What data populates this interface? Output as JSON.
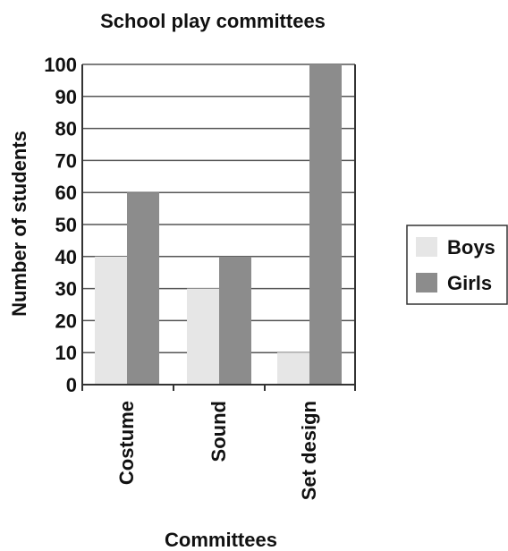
{
  "chart_data": {
    "type": "bar",
    "title": "School play committees",
    "xlabel": "Committees",
    "ylabel": "Number of students",
    "categories": [
      "Costume",
      "Sound",
      "Set design"
    ],
    "series": [
      {
        "name": "Boys",
        "values": [
          40,
          30,
          10
        ]
      },
      {
        "name": "Girls",
        "values": [
          60,
          40,
          100
        ]
      }
    ],
    "ylim": [
      0,
      100
    ],
    "yticks": [
      "0",
      "10",
      "20",
      "30",
      "40",
      "50",
      "60",
      "70",
      "80",
      "90",
      "100"
    ],
    "grid": true,
    "legend_position": "right",
    "colors": {
      "Boys": "#e6e6e6",
      "Girls": "#8c8c8c"
    }
  }
}
